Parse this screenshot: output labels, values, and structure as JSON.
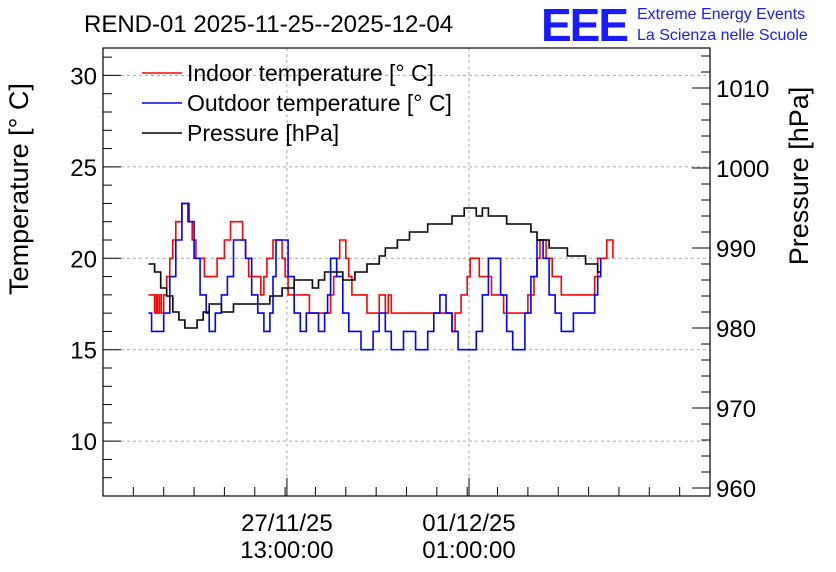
{
  "chart_data": {
    "type": "line",
    "title": "REND-01 2025-11-25--2025-12-04",
    "logo": {
      "letters": "EEE",
      "line1": "Extreme Energy Events",
      "line2": "La Scienza nelle Scuole",
      "color": "#1a1aff"
    },
    "ylabel": "Temperature [° C]",
    "y2label": "Pressure [hPa]",
    "ylim": [
      7,
      31.5
    ],
    "y2lim": [
      959,
      1015
    ],
    "yticks": [
      10,
      15,
      20,
      25,
      30
    ],
    "y2ticks": [
      960,
      970,
      980,
      990,
      1000,
      1010
    ],
    "xlim": [
      0,
      10
    ],
    "xticks": [
      {
        "x": 3.03,
        "line1": "27/11/25",
        "line2": "13:00:00"
      },
      {
        "x": 6.03,
        "line1": "01/12/25",
        "line2": "01:00:00"
      }
    ],
    "grid": true,
    "legend": {
      "position": "top-left",
      "entries": [
        {
          "label": "Indoor temperature [° C]",
          "color": "#ff0000"
        },
        {
          "label": "Outdoor temperature [° C]",
          "color": "#0000ff"
        },
        {
          "label": "Pressure [hPa]",
          "color": "#000000"
        }
      ]
    },
    "series": [
      {
        "name": "Indoor temperature [° C]",
        "axis": "left",
        "color": "#ff0000",
        "x": [
          0.75,
          0.8,
          0.85,
          0.88,
          0.9,
          0.93,
          0.96,
          1.0,
          1.05,
          1.1,
          1.15,
          1.2,
          1.3,
          1.35,
          1.42,
          1.47,
          1.53,
          1.6,
          1.67,
          1.73,
          1.8,
          1.88,
          2.0,
          2.1,
          2.15,
          2.2,
          2.3,
          2.35,
          2.4,
          2.45,
          2.5,
          2.55,
          2.6,
          2.65,
          2.7,
          2.75,
          2.8,
          2.85,
          2.9,
          2.95,
          3.0,
          3.05,
          3.15,
          3.2,
          3.3,
          3.4,
          3.5,
          3.55,
          3.65,
          3.75,
          3.8,
          3.85,
          3.9,
          3.95,
          4.0,
          4.05,
          4.1,
          4.2,
          4.35,
          4.45,
          4.55,
          4.65,
          4.7,
          4.75,
          4.8,
          5.0,
          5.5,
          5.6,
          5.7,
          5.75,
          5.8,
          5.9,
          6.0,
          6.05,
          6.1,
          6.15,
          6.2,
          6.3,
          6.4,
          6.5,
          6.6,
          6.7,
          6.8,
          6.9,
          7.0,
          7.1,
          7.15,
          7.2,
          7.3,
          7.4,
          7.55,
          7.65,
          7.75,
          7.8,
          7.85,
          7.9,
          7.95,
          8.0,
          8.05,
          8.1,
          8.15,
          8.2,
          8.25,
          8.3,
          8.4
        ],
        "values": [
          18,
          18,
          17,
          18,
          17,
          18,
          17,
          18,
          19,
          20,
          21,
          22,
          23,
          23,
          22,
          21,
          20,
          20,
          19,
          19,
          19,
          20,
          21,
          22,
          22,
          22,
          21,
          20,
          19,
          19,
          19,
          19,
          18,
          19,
          20,
          20,
          21,
          21,
          21,
          20,
          19,
          18,
          18,
          18,
          18,
          17,
          17,
          17,
          17,
          18,
          19,
          20,
          21,
          21,
          20,
          19,
          18,
          18,
          17,
          17,
          18,
          17,
          18,
          17,
          17,
          17,
          17,
          17,
          17,
          16,
          17,
          18,
          19,
          20,
          20,
          20,
          19,
          19,
          18,
          18,
          17,
          17,
          17,
          17,
          18,
          19,
          20,
          21,
          20,
          19,
          18,
          18,
          18,
          18,
          18,
          18,
          18,
          18,
          18,
          19,
          20,
          20,
          20,
          21,
          20
        ]
      },
      {
        "name": "Outdoor temperature [° C]",
        "axis": "left",
        "color": "#0000ff",
        "x": [
          0.75,
          0.8,
          0.9,
          1.0,
          1.1,
          1.2,
          1.3,
          1.4,
          1.5,
          1.6,
          1.7,
          1.75,
          1.85,
          1.95,
          2.05,
          2.15,
          2.25,
          2.35,
          2.45,
          2.55,
          2.65,
          2.75,
          2.8,
          2.85,
          2.95,
          3.05,
          3.15,
          3.25,
          3.35,
          3.45,
          3.55,
          3.65,
          3.7,
          3.75,
          3.8,
          3.85,
          3.95,
          4.05,
          4.15,
          4.25,
          4.35,
          4.45,
          4.55,
          4.65,
          4.75,
          4.85,
          4.95,
          5.05,
          5.15,
          5.25,
          5.35,
          5.45,
          5.55,
          5.65,
          5.75,
          5.85,
          5.95,
          6.05,
          6.15,
          6.25,
          6.35,
          6.45,
          6.55,
          6.65,
          6.75,
          6.85,
          6.95,
          7.05,
          7.15,
          7.25,
          7.35,
          7.45,
          7.55,
          7.65,
          7.75,
          7.85,
          7.95,
          8.05,
          8.1,
          8.15,
          8.2
        ],
        "values": [
          17,
          16,
          16,
          17,
          19,
          21,
          23,
          22,
          20,
          18,
          17,
          16,
          17,
          18,
          19,
          21,
          21,
          20,
          18,
          17,
          16,
          17,
          19,
          21,
          21,
          19,
          17,
          16,
          17,
          17,
          16,
          17,
          18,
          20,
          20,
          19,
          17,
          16,
          16,
          15,
          15,
          16,
          17,
          16,
          15,
          15,
          16,
          16,
          15,
          15,
          16,
          17,
          18,
          17,
          16,
          15,
          15,
          15,
          16,
          18,
          20,
          20,
          18,
          16,
          15,
          15,
          17,
          19,
          21,
          20,
          18,
          17,
          16,
          16,
          17,
          17,
          17,
          17,
          18,
          19,
          20
        ]
      },
      {
        "name": "Pressure [hPa]",
        "axis": "right",
        "color": "#000000",
        "x": [
          0.75,
          0.85,
          0.95,
          1.05,
          1.15,
          1.25,
          1.35,
          1.45,
          1.55,
          1.65,
          1.75,
          1.85,
          1.95,
          2.05,
          2.15,
          2.25,
          2.35,
          2.45,
          2.55,
          2.65,
          2.75,
          2.85,
          2.95,
          3.05,
          3.15,
          3.25,
          3.35,
          3.45,
          3.55,
          3.65,
          3.75,
          3.85,
          3.95,
          4.05,
          4.15,
          4.25,
          4.35,
          4.45,
          4.55,
          4.65,
          4.75,
          4.85,
          4.95,
          5.05,
          5.15,
          5.25,
          5.35,
          5.45,
          5.55,
          5.65,
          5.75,
          5.85,
          5.95,
          6.05,
          6.15,
          6.25,
          6.35,
          6.45,
          6.55,
          6.65,
          6.75,
          6.85,
          6.95,
          7.05,
          7.15,
          7.25,
          7.35,
          7.45,
          7.55,
          7.65,
          7.75,
          7.85,
          7.95,
          8.05,
          8.15,
          8.2
        ],
        "values": [
          988,
          987,
          985,
          984,
          982,
          981,
          980,
          980,
          981,
          982,
          983,
          983,
          982,
          982,
          983,
          983,
          983,
          983,
          983,
          983,
          984,
          984,
          985,
          985,
          986,
          986,
          986,
          985,
          986,
          987,
          987,
          987,
          986,
          986,
          987,
          987,
          988,
          988,
          989,
          990,
          990,
          991,
          991,
          992,
          992,
          992,
          993,
          993,
          993,
          993,
          994,
          994,
          995,
          995,
          994,
          995,
          994,
          994,
          994,
          993,
          993,
          993,
          993,
          992,
          991,
          991,
          990,
          990,
          990,
          989,
          989,
          989,
          988,
          988,
          987,
          987
        ]
      }
    ]
  }
}
